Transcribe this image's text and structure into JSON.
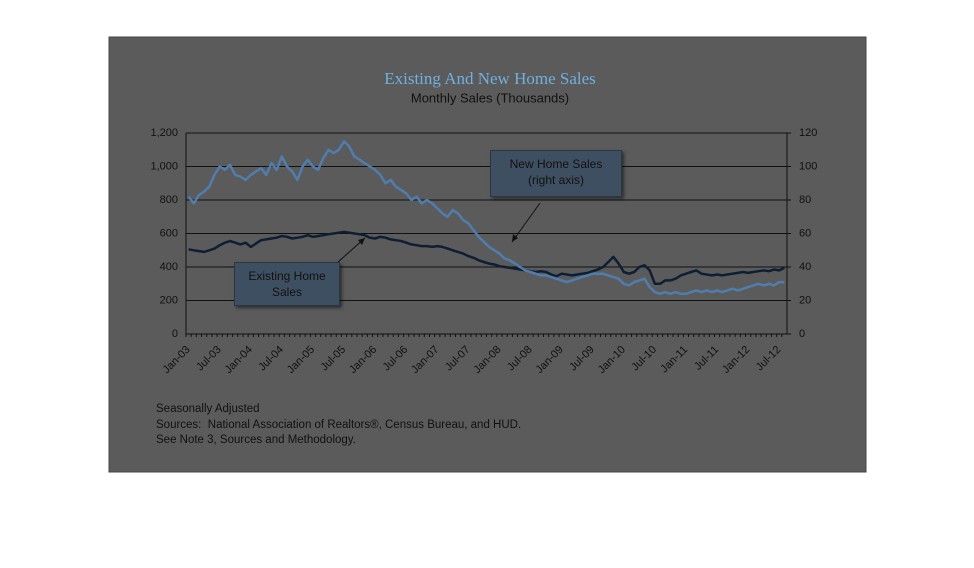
{
  "chart_data": {
    "type": "line",
    "title": "Existing And New Home Sales",
    "subtitle": "Monthly Sales (Thousands)",
    "categories": [
      "Jan-03",
      null,
      null,
      null,
      null,
      null,
      "Jul-03",
      null,
      null,
      null,
      null,
      null,
      "Jan-04",
      null,
      null,
      null,
      null,
      null,
      "Jul-04",
      null,
      null,
      null,
      null,
      null,
      "Jan-05",
      null,
      null,
      null,
      null,
      null,
      "Jul-05",
      null,
      null,
      null,
      null,
      null,
      "Jan-06",
      null,
      null,
      null,
      null,
      null,
      "Jul-06",
      null,
      null,
      null,
      null,
      null,
      "Jan-07",
      null,
      null,
      null,
      null,
      null,
      "Jul-07",
      null,
      null,
      null,
      null,
      null,
      "Jan-08",
      null,
      null,
      null,
      null,
      null,
      "Jul-08",
      null,
      null,
      null,
      null,
      null,
      "Jan-09",
      null,
      null,
      null,
      null,
      null,
      "Jul-09",
      null,
      null,
      null,
      null,
      null,
      "Jan-10",
      null,
      null,
      null,
      null,
      null,
      "Jul-10",
      null,
      null,
      null,
      null,
      null,
      "Jan-11",
      null,
      null,
      null,
      null,
      null,
      "Jul-11",
      null,
      null,
      null,
      null,
      null,
      "Jan-12",
      null,
      null,
      null,
      null,
      null,
      "Jul-12",
      null
    ],
    "series": [
      {
        "name": "Existing Home Sales",
        "color": "#0f1f33",
        "axis": "y",
        "values": [
          505,
          500,
          495,
          490,
          500,
          510,
          530,
          545,
          555,
          545,
          535,
          545,
          520,
          540,
          560,
          565,
          570,
          575,
          585,
          580,
          570,
          575,
          580,
          590,
          580,
          585,
          590,
          595,
          600,
          605,
          610,
          605,
          600,
          595,
          590,
          575,
          570,
          580,
          575,
          565,
          560,
          555,
          545,
          535,
          530,
          525,
          525,
          520,
          525,
          520,
          510,
          500,
          490,
          480,
          465,
          455,
          440,
          430,
          420,
          415,
          405,
          400,
          395,
          390,
          385,
          380,
          375,
          370,
          375,
          370,
          355,
          345,
          360,
          355,
          350,
          355,
          360,
          365,
          375,
          385,
          400,
          430,
          460,
          420,
          370,
          360,
          370,
          400,
          410,
          380,
          300,
          300,
          320,
          320,
          330,
          350,
          360,
          370,
          380,
          360,
          355,
          350,
          355,
          350,
          355,
          360,
          365,
          370,
          365,
          370,
          375,
          380,
          375,
          385,
          380,
          395
        ]
      },
      {
        "name": "New Home Sales (right axis)",
        "color": "#4f7eae",
        "axis": "y2",
        "values": [
          82,
          78,
          83,
          85,
          88,
          95,
          100,
          98,
          101,
          95,
          94,
          92,
          95,
          97,
          99,
          95,
          102,
          98,
          106,
          100,
          97,
          92,
          100,
          104,
          100,
          98,
          105,
          110,
          108,
          110,
          115,
          112,
          106,
          104,
          102,
          100,
          98,
          95,
          90,
          92,
          88,
          86,
          84,
          80,
          82,
          78,
          80,
          78,
          75,
          72,
          70,
          74,
          72,
          68,
          66,
          62,
          58,
          55,
          52,
          50,
          48,
          45,
          44,
          42,
          40,
          38,
          37,
          36,
          35,
          35,
          34,
          33,
          32,
          31,
          32,
          33,
          34,
          35,
          36,
          36,
          36,
          35,
          34,
          33,
          30,
          29,
          31,
          32,
          33,
          28,
          25,
          24,
          25,
          24,
          25,
          24,
          24,
          25,
          26,
          25,
          26,
          25,
          26,
          25,
          26,
          27,
          26,
          27,
          28,
          29,
          30,
          29,
          30,
          29,
          31,
          31
        ]
      }
    ],
    "ylim": [
      0,
      1200
    ],
    "yticks": [
      0,
      200,
      400,
      600,
      800,
      {
        "value": 1000,
        "label": "1,000"
      },
      {
        "value": 1200,
        "label": "1,200"
      }
    ],
    "y2lim": [
      0,
      120
    ],
    "y2ticks": [
      0,
      20,
      40,
      60,
      80,
      100,
      120
    ],
    "grid": true,
    "annotations": [
      "New Home Sales (right axis)",
      "Existing Home Sales"
    ],
    "notes": [
      "Seasonally Adjusted",
      "Sources:  National Association of Realtors®, Census Bureau, and HUD.",
      "See Note 3, Sources and Methodology."
    ]
  }
}
